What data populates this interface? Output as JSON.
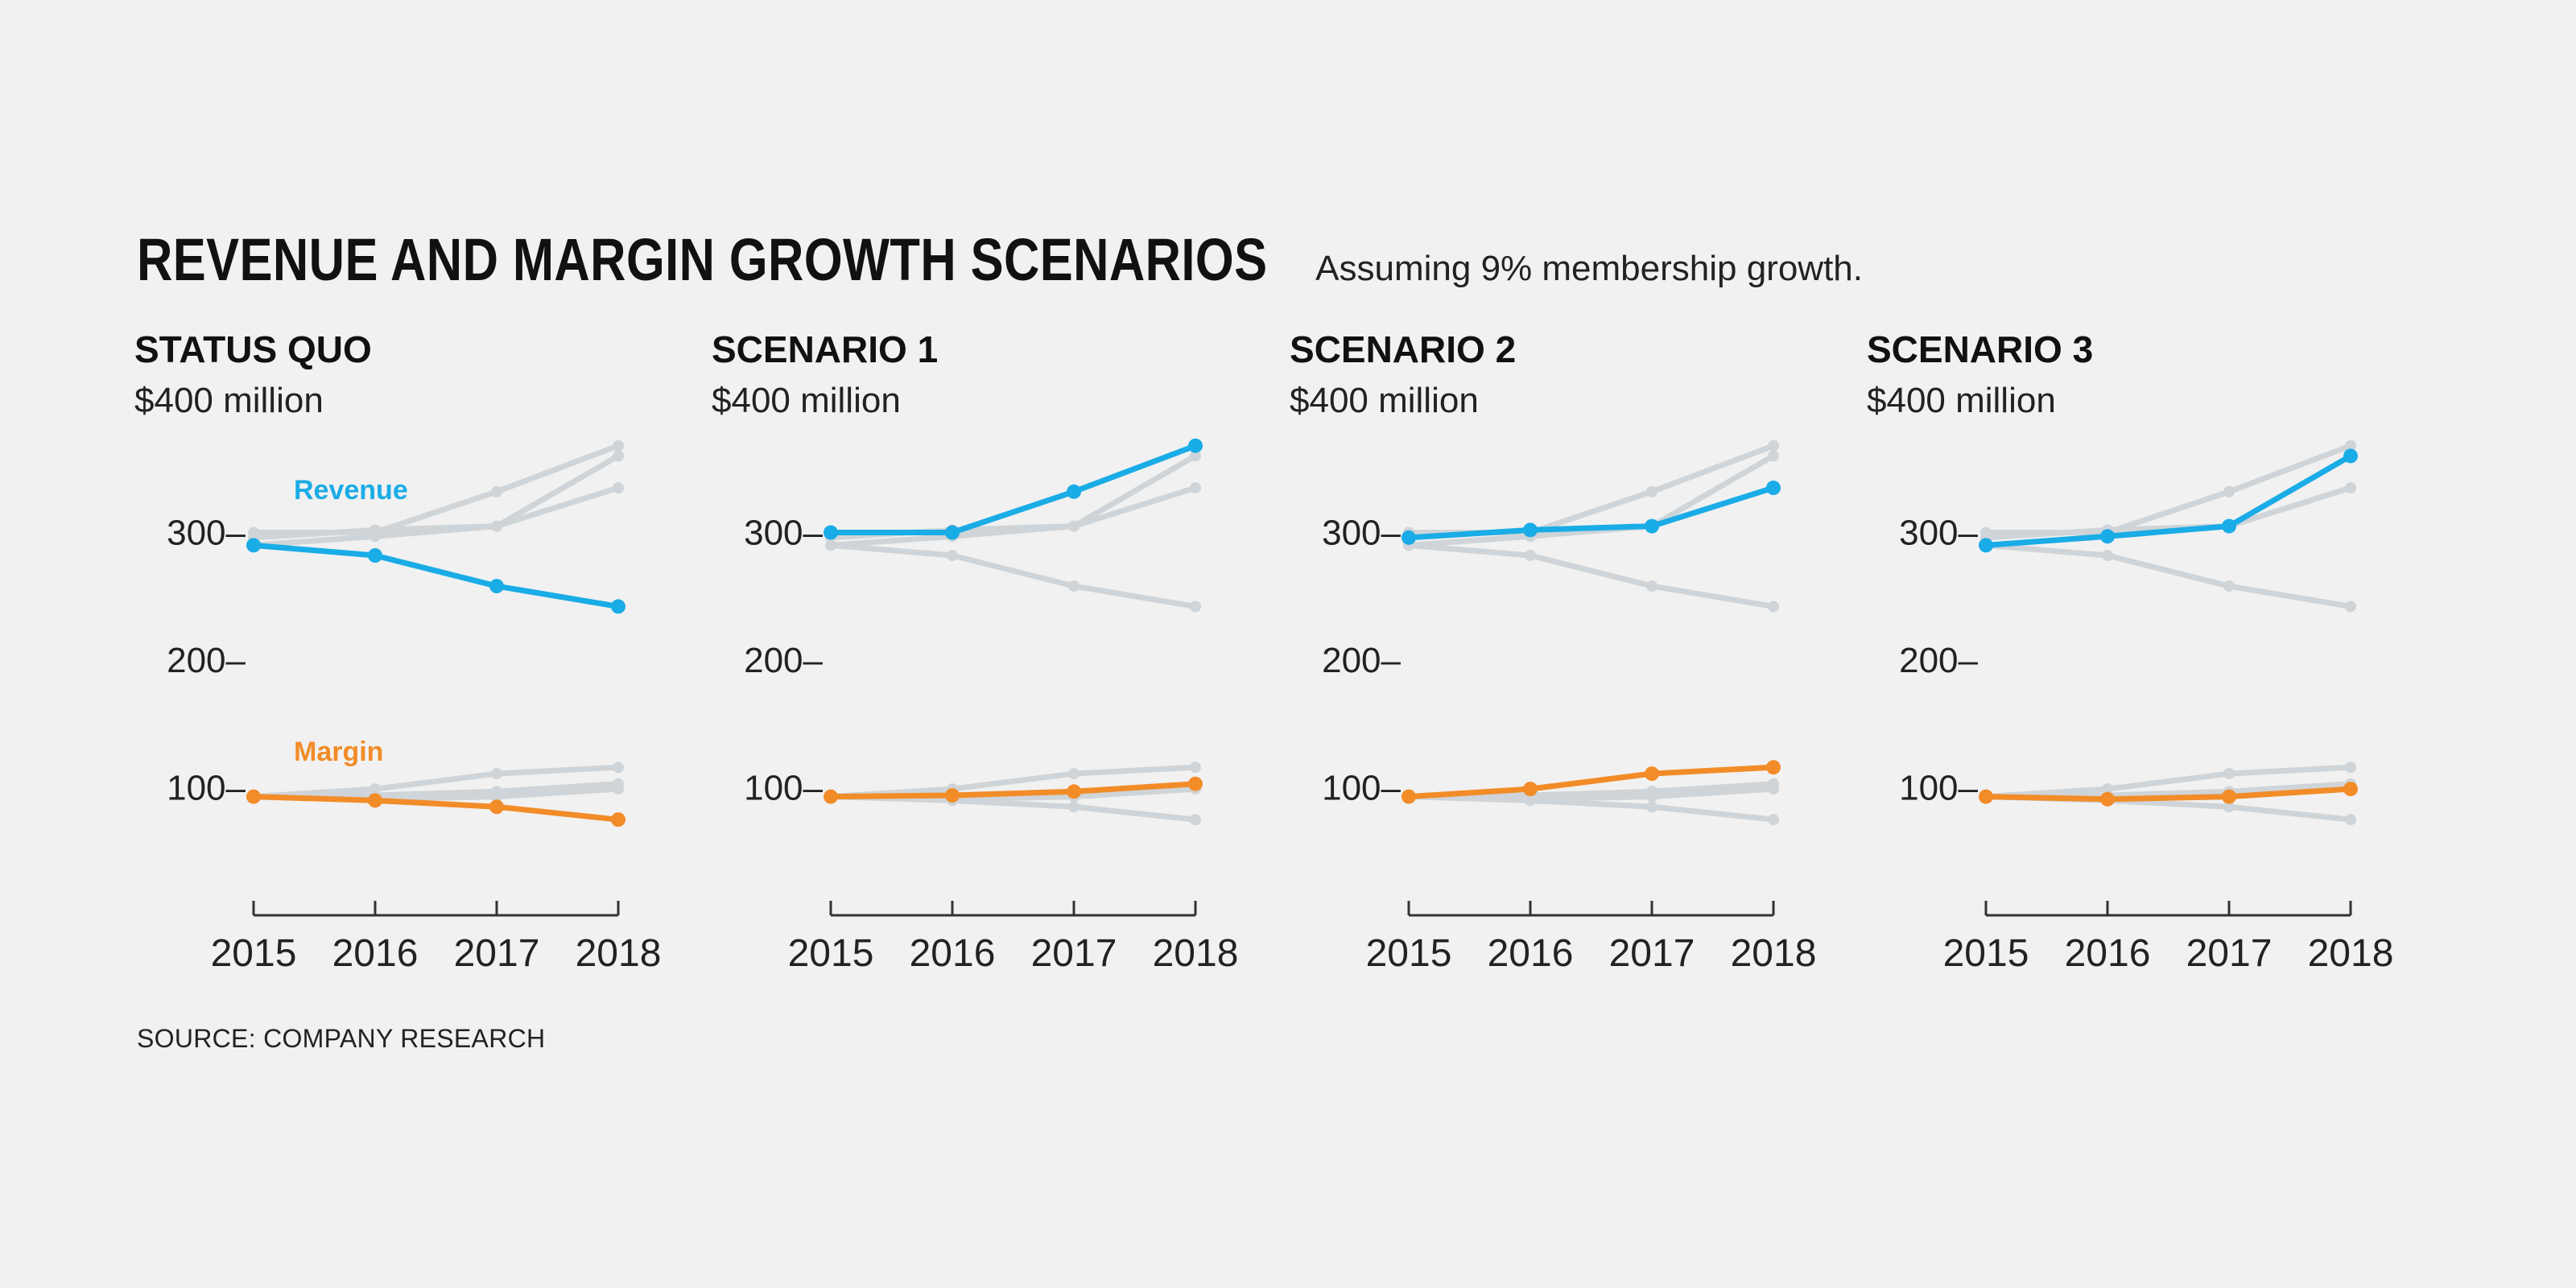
{
  "title": "REVENUE AND MARGIN GROWTH SCENARIOS",
  "subtitle": "Assuming 9% membership growth.",
  "source": "SOURCE: COMPANY RESEARCH",
  "colors": {
    "revenue": "#1aace6",
    "margin": "#f28c28",
    "context": "#cfd4d8",
    "axis": "#333333"
  },
  "chart_data": {
    "type": "line",
    "unit": "$400 million",
    "x": [
      "2015",
      "2016",
      "2017",
      "2018"
    ],
    "y_ticks": [
      "300",
      "200",
      "100"
    ],
    "ylim": [
      0,
      400
    ],
    "series_labels": {
      "revenue": "Revenue",
      "margin": "Margin"
    },
    "panels": [
      {
        "title": "STATUS QUO",
        "revenue": [
          290,
          282,
          258,
          242
        ],
        "margin": [
          93,
          90,
          85,
          75
        ]
      },
      {
        "title": "SCENARIO 1",
        "revenue": [
          300,
          300,
          332,
          368
        ],
        "margin": [
          93,
          94,
          97,
          103
        ]
      },
      {
        "title": "SCENARIO 2",
        "revenue": [
          296,
          302,
          305,
          335
        ],
        "margin": [
          93,
          99,
          111,
          116
        ]
      },
      {
        "title": "SCENARIO 3",
        "revenue": [
          290,
          297,
          305,
          360
        ],
        "margin": [
          93,
          91,
          93,
          99
        ]
      }
    ]
  }
}
